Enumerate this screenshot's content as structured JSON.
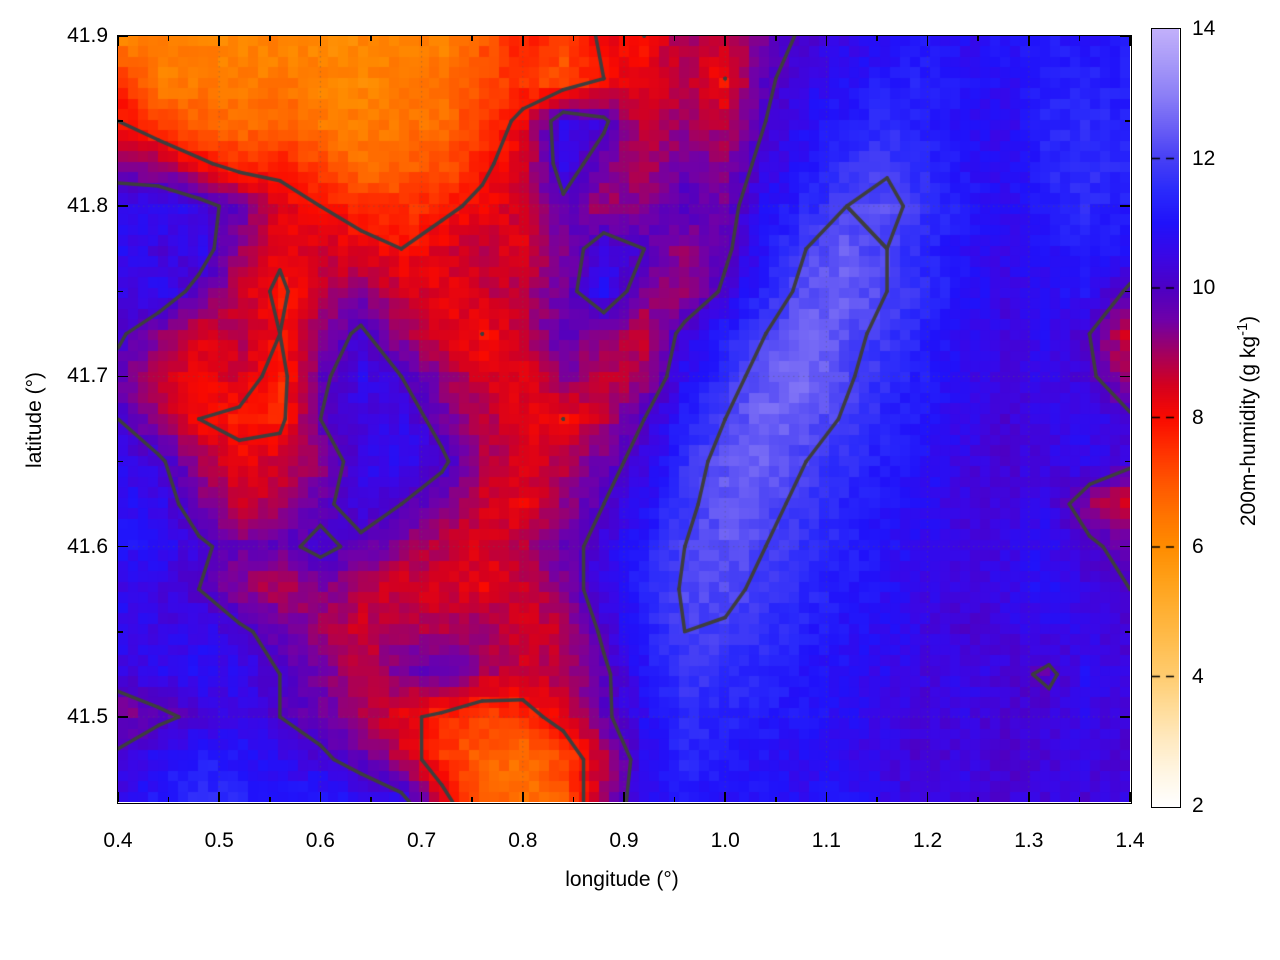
{
  "figure": {
    "background": "#ffffff",
    "colorbar_label": "200m-humidity (g kg⁻¹)",
    "colorbar_label_parts": {
      "pre": "200m-humidity (g kg",
      "sup": "-1",
      "post": ")"
    }
  },
  "chart_data": {
    "type": "heatmap",
    "title": "",
    "xlabel": "longitude (°)",
    "ylabel": "latitude (°)",
    "colorbar_label": "200m-humidity (g kg⁻¹)",
    "x_range": [
      0.4,
      1.4
    ],
    "y_range": [
      41.45,
      41.9
    ],
    "z_range": [
      2,
      14
    ],
    "x_tick_values": [
      0.4,
      0.5,
      0.6,
      0.7,
      0.8,
      0.9,
      1.0,
      1.1,
      1.2,
      1.3,
      1.4
    ],
    "x_tick_labels": [
      "0.4",
      "0.5",
      "0.6",
      "0.7",
      "0.8",
      "0.9",
      "1.0",
      "1.1",
      "1.2",
      "1.3",
      "1.4"
    ],
    "x_minor_ticks": [
      0.45,
      0.55,
      0.65,
      0.75,
      0.85,
      0.95,
      1.05,
      1.15,
      1.25,
      1.35
    ],
    "y_tick_values": [
      41.9,
      41.8,
      41.7,
      41.6,
      41.5
    ],
    "y_tick_labels": [
      "41.9",
      "41.8",
      "41.7",
      "41.6",
      "41.5"
    ],
    "y_minor_ticks": [
      41.85,
      41.75,
      41.65,
      41.55
    ],
    "colorbar_tick_values": [
      14,
      12,
      10,
      8,
      6,
      4,
      2
    ],
    "colorbar_tick_labels": [
      "14",
      "12",
      "10",
      "8",
      "6",
      "4",
      "2"
    ],
    "grid_on": true,
    "legend": "none",
    "contour_levels": [
      8,
      10,
      12
    ],
    "contour_color": "#3e3e3e",
    "grid_line_color": "rgba(90,90,90,0.45)",
    "palette": [
      [
        2,
        "#ffffff"
      ],
      [
        2.5,
        "#fff6e4"
      ],
      [
        3,
        "#ffeac2"
      ],
      [
        3.5,
        "#ffdc9a"
      ],
      [
        4,
        "#ffcc70"
      ],
      [
        4.5,
        "#ffbe50"
      ],
      [
        5,
        "#ffb034"
      ],
      [
        5.5,
        "#ffa018"
      ],
      [
        6,
        "#ff8c00"
      ],
      [
        6.5,
        "#ff7300"
      ],
      [
        7,
        "#ff5500"
      ],
      [
        7.5,
        "#ff3000"
      ],
      [
        8,
        "#fa0a00"
      ],
      [
        8.5,
        "#d4001f"
      ],
      [
        9,
        "#a30060"
      ],
      [
        9.5,
        "#7000a8"
      ],
      [
        10,
        "#4d00c4"
      ],
      [
        10.5,
        "#3a07e6"
      ],
      [
        11,
        "#2012fa"
      ],
      [
        11.5,
        "#2a2afb"
      ],
      [
        12,
        "#4740f5"
      ],
      [
        12.5,
        "#6c60f5"
      ],
      [
        13,
        "#8d80f6"
      ],
      [
        13.5,
        "#a89af8"
      ],
      [
        14,
        "#c2b0fa"
      ]
    ],
    "grid": {
      "lon_min": 0.4,
      "lon_step": 0.04,
      "lat_max": 41.9,
      "lat_step": 0.025,
      "values": [
        [
          6.3,
          6.2,
          6.2,
          6.1,
          6.2,
          6.0,
          6.1,
          6.3,
          6.2,
          7.0,
          7.8,
          7.2,
          8.2,
          8.0,
          9.0,
          8.5,
          9.5,
          10.2,
          10.6,
          10.8,
          11.0,
          10.8,
          11.0,
          11.2,
          11.0,
          11.1
        ],
        [
          7.6,
          6.3,
          6.4,
          6.3,
          6.5,
          6.2,
          6.1,
          6.4,
          6.5,
          7.2,
          7.5,
          7.0,
          8.0,
          8.3,
          8.8,
          8.0,
          9.8,
          10.6,
          10.9,
          11.2,
          11.3,
          11.0,
          10.8,
          11.2,
          11.4,
          11.2
        ],
        [
          8.0,
          7.2,
          6.8,
          6.6,
          6.8,
          6.4,
          6.3,
          6.5,
          6.6,
          7.5,
          8.2,
          10.8,
          10.2,
          8.5,
          9.2,
          8.8,
          10.0,
          10.8,
          11.2,
          11.5,
          11.3,
          10.9,
          10.6,
          11.3,
          11.5,
          11.3
        ],
        [
          9.5,
          9.0,
          8.2,
          7.6,
          7.8,
          7.2,
          6.6,
          6.8,
          7.0,
          7.8,
          8.5,
          10.5,
          9.5,
          8.8,
          9.6,
          9.2,
          10.4,
          11.0,
          11.6,
          11.9,
          11.5,
          11.0,
          10.7,
          11.4,
          11.6,
          11.4
        ],
        [
          10.6,
          10.9,
          10.4,
          9.6,
          8.3,
          8.0,
          7.6,
          7.5,
          7.8,
          8.2,
          8.6,
          9.8,
          9.0,
          9.4,
          10.0,
          9.6,
          10.8,
          11.4,
          12.0,
          12.2,
          11.7,
          11.2,
          10.8,
          11.2,
          11.5,
          11.2
        ],
        [
          10.8,
          10.3,
          10.6,
          9.0,
          8.2,
          8.5,
          8.3,
          8.0,
          8.4,
          8.8,
          8.3,
          9.4,
          10.6,
          10.0,
          9.0,
          9.8,
          11.0,
          12.0,
          12.4,
          12.0,
          11.4,
          10.9,
          10.6,
          10.9,
          11.2,
          10.9
        ],
        [
          10.4,
          10.8,
          9.6,
          8.6,
          7.8,
          8.8,
          9.2,
          8.6,
          8.2,
          8.6,
          8.8,
          9.6,
          10.8,
          9.4,
          9.0,
          10.2,
          11.4,
          12.3,
          12.5,
          12.0,
          11.6,
          11.0,
          10.5,
          10.7,
          11.0,
          9.8
        ],
        [
          10.2,
          9.2,
          8.4,
          8.8,
          8.0,
          9.4,
          10.2,
          9.0,
          8.4,
          8.0,
          8.8,
          9.8,
          9.2,
          8.6,
          10.4,
          11.2,
          12.0,
          12.6,
          12.2,
          11.8,
          11.3,
          10.8,
          10.4,
          10.8,
          10.0,
          8.6
        ],
        [
          9.6,
          8.6,
          8.2,
          8.5,
          7.6,
          9.8,
          10.6,
          10.0,
          9.2,
          8.4,
          8.2,
          9.4,
          8.6,
          9.0,
          10.8,
          11.6,
          12.4,
          12.7,
          12.1,
          11.6,
          11.2,
          10.7,
          10.3,
          10.6,
          10.2,
          9.0
        ],
        [
          10.0,
          9.0,
          8.0,
          7.8,
          7.7,
          10.0,
          10.4,
          10.6,
          9.6,
          8.8,
          8.4,
          8.0,
          8.8,
          10.0,
          11.2,
          12.0,
          12.6,
          12.4,
          11.9,
          11.4,
          11.0,
          10.6,
          10.2,
          10.5,
          10.8,
          10.2
        ],
        [
          10.6,
          10.2,
          9.0,
          8.2,
          8.6,
          9.2,
          10.6,
          10.8,
          10.2,
          9.0,
          8.4,
          8.8,
          9.6,
          10.4,
          11.6,
          12.3,
          12.5,
          12.0,
          11.6,
          11.2,
          10.9,
          10.5,
          10.2,
          10.4,
          10.7,
          10.3
        ],
        [
          10.9,
          10.6,
          9.4,
          8.6,
          9.0,
          9.8,
          10.4,
          10.0,
          9.4,
          8.6,
          8.2,
          9.2,
          10.0,
          10.8,
          11.8,
          12.4,
          12.2,
          11.8,
          11.4,
          11.1,
          10.8,
          10.4,
          10.3,
          10.6,
          9.4,
          8.4
        ],
        [
          11.0,
          10.8,
          10.2,
          9.6,
          9.8,
          10.2,
          9.8,
          9.2,
          8.8,
          8.4,
          8.8,
          9.6,
          10.4,
          11.2,
          12.0,
          12.3,
          12.0,
          11.7,
          11.3,
          11.0,
          10.7,
          10.4,
          10.5,
          10.8,
          10.2,
          9.6
        ],
        [
          10.6,
          10.4,
          10.0,
          9.2,
          8.8,
          9.4,
          8.8,
          8.4,
          8.6,
          8.2,
          8.6,
          9.4,
          10.6,
          11.4,
          12.1,
          12.2,
          11.8,
          11.5,
          11.2,
          10.9,
          10.6,
          10.3,
          10.6,
          10.9,
          10.4,
          10.0
        ],
        [
          10.8,
          10.5,
          10.6,
          10.2,
          9.6,
          9.0,
          8.6,
          9.0,
          8.8,
          9.2,
          8.4,
          8.8,
          10.2,
          11.2,
          12.0,
          11.9,
          11.6,
          11.3,
          11.0,
          10.8,
          10.5,
          10.2,
          10.4,
          10.7,
          10.5,
          10.2
        ],
        [
          10.4,
          10.7,
          10.9,
          10.6,
          10.0,
          9.4,
          8.8,
          9.6,
          9.8,
          9.0,
          8.6,
          9.0,
          9.8,
          11.0,
          11.8,
          11.6,
          11.4,
          11.1,
          10.9,
          10.7,
          10.4,
          10.6,
          10.3,
          9.8,
          10.8,
          10.4
        ],
        [
          9.4,
          9.8,
          10.2,
          10.6,
          10.0,
          9.6,
          9.0,
          8.2,
          7.8,
          7.4,
          7.6,
          8.4,
          9.8,
          10.8,
          11.6,
          11.4,
          11.2,
          11.0,
          10.8,
          10.6,
          10.3,
          10.5,
          10.2,
          10.4,
          10.6,
          10.3
        ],
        [
          10.2,
          10.8,
          11.2,
          11.0,
          10.6,
          10.2,
          9.6,
          8.6,
          7.4,
          6.8,
          6.6,
          7.2,
          8.8,
          10.6,
          11.4,
          11.2,
          11.0,
          10.8,
          10.7,
          10.5,
          10.2,
          10.4,
          10.1,
          10.3,
          10.5,
          10.2
        ],
        [
          10.6,
          11.2,
          11.5,
          11.3,
          11.0,
          11.2,
          10.8,
          10.4,
          8.4,
          6.9,
          6.5,
          7.0,
          9.0,
          10.8,
          11.2,
          11.0,
          10.9,
          10.8,
          11.0,
          10.6,
          10.3,
          10.5,
          10.2,
          10.4,
          10.3,
          10.5
        ]
      ]
    }
  }
}
